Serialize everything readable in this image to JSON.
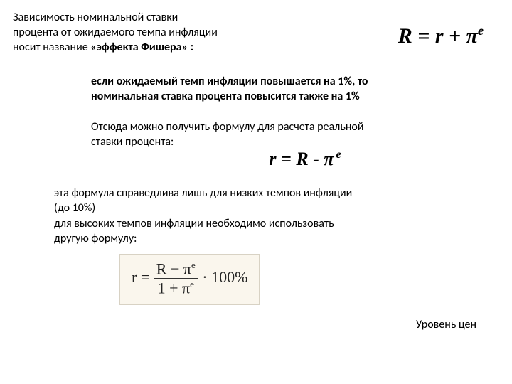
{
  "intro": {
    "line1": "Зависимость номинальной ставки",
    "line2": "процента от ожидаемого темпа инфляции",
    "line3_prefix": "носит название ",
    "line3_bold": "«эффекта Фишера» :"
  },
  "formula1": {
    "R": "R",
    "eq": " = ",
    "r": "r",
    "plus": " + ",
    "pi": "π",
    "sup": "e"
  },
  "para1": {
    "t1": "если ожидаемый темп инфляции повышается на 1%, то",
    "t2": "номинальная ставка процента повысится также на 1%"
  },
  "para2": {
    "t1": "Отсюда можно получить формулу для расчета реальной",
    "t2": "ставки процента:"
  },
  "formula2": {
    "r": "r",
    "eq": " = ",
    "R": "R",
    "minus": " - ",
    "pi": "π",
    "sup": "e"
  },
  "para3": {
    "t1": "эта формула справедлива лишь для низких темпов инфляции",
    "t2": "(до 10%)",
    "t3_u": "для высоких темпов инфляции ",
    "t3_rest": "необходимо использовать",
    "t4": "другую формулу:"
  },
  "formula3": {
    "r": "r",
    "eq": " = ",
    "num_R": "R",
    "num_minus": " − ",
    "num_pi": "π",
    "num_sup": "e",
    "den_one": "1",
    "den_plus": " + ",
    "den_pi": "π",
    "den_sup": "e",
    "dot": " · ",
    "hundred": "100%"
  },
  "caption": "Уровень цен"
}
